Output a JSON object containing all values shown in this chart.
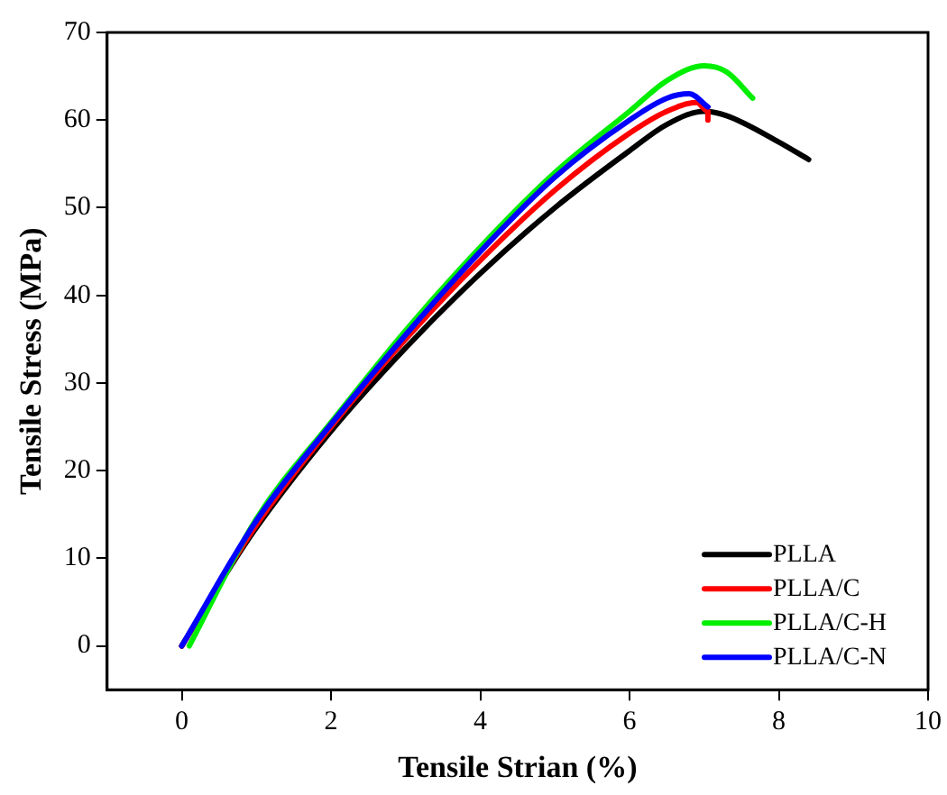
{
  "chart_data": {
    "type": "line",
    "xlabel": "Tensile Strian (%)",
    "ylabel": "Tensile Stress (MPa)",
    "xlim": [
      -1,
      10
    ],
    "ylim": [
      -5,
      70
    ],
    "xticks": [
      0,
      2,
      4,
      6,
      8,
      10
    ],
    "yticks": [
      0,
      10,
      20,
      30,
      40,
      50,
      60,
      70
    ],
    "grid": false,
    "legend": "bottom right",
    "marker": "none",
    "line_style": "solid",
    "series": [
      {
        "name": "PLLA",
        "color": "#000000",
        "x": [
          0,
          0.5,
          1,
          2,
          3,
          4,
          5,
          6,
          6.5,
          7,
          7.3,
          8,
          8.4
        ],
        "values": [
          0,
          7,
          13.5,
          24.5,
          34,
          42.5,
          50,
          56.5,
          59.5,
          61,
          60.5,
          57.5,
          55.5
        ]
      },
      {
        "name": "PLLA/C",
        "color": "#ff0000",
        "x": [
          0,
          1,
          2,
          3,
          4,
          5,
          6,
          6.5,
          6.9,
          7.05,
          7.05
        ],
        "values": [
          0,
          13.8,
          25,
          35,
          44,
          52,
          58.5,
          61,
          62,
          61,
          60
        ]
      },
      {
        "name": "PLLA/C-H",
        "color": "#00ee00",
        "x": [
          0.1,
          1,
          2,
          3,
          4,
          5,
          6,
          6.5,
          7,
          7.3,
          7.65
        ],
        "values": [
          0,
          14.5,
          25.5,
          36,
          45.5,
          54,
          61,
          64.5,
          66.2,
          65.5,
          62.5
        ]
      },
      {
        "name": "PLLA/C-N",
        "color": "#0000ff",
        "x": [
          0,
          1,
          2,
          3,
          4,
          5,
          6,
          6.5,
          6.8,
          7.05
        ],
        "values": [
          0,
          14.3,
          25.3,
          35.5,
          45,
          53.5,
          60,
          62.5,
          63,
          61.5
        ]
      }
    ]
  }
}
